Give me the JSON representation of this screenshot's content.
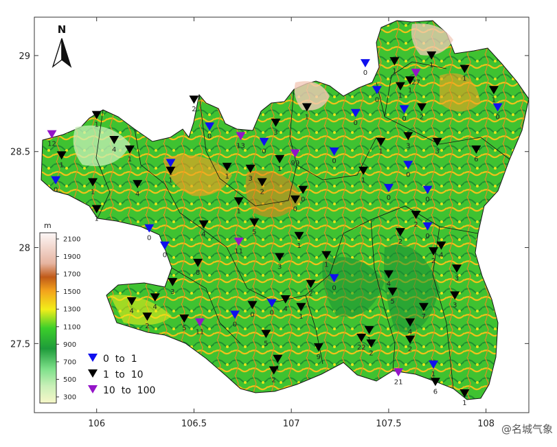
{
  "map": {
    "north_label": "N",
    "colorbar_unit": "m",
    "colorbar_ticks": [
      "2100",
      "1900",
      "1700",
      "1500",
      "1300",
      "1100",
      "900",
      "700",
      "500",
      "300"
    ],
    "lon_ticks": [
      "106",
      "106.5",
      "107",
      "107.5",
      "108"
    ],
    "lat_ticks": [
      "29",
      "28.5",
      "28",
      "27.5"
    ],
    "legend": [
      {
        "label": "0  to  1",
        "color": "#1010ee"
      },
      {
        "label": "1  to  10",
        "color": "#000000"
      },
      {
        "label": "10  to  100",
        "color": "#9414c8"
      }
    ],
    "watermark": "@名城气象",
    "extent": {
      "lon_min": 105.68,
      "lon_max": 108.22,
      "lat_min": 27.14,
      "lat_max": 29.2
    },
    "stations": [
      {
        "lon": 105.77,
        "lat": 28.59,
        "value": "12",
        "cls": "high"
      },
      {
        "lon": 105.82,
        "lat": 28.48,
        "value": "1",
        "cls": "mid"
      },
      {
        "lon": 105.79,
        "lat": 28.35,
        "value": "0",
        "cls": "low"
      },
      {
        "lon": 106.0,
        "lat": 28.69,
        "value": "1",
        "cls": "mid"
      },
      {
        "lon": 106.09,
        "lat": 28.56,
        "value": "4",
        "cls": "mid"
      },
      {
        "lon": 106.17,
        "lat": 28.51,
        "value": "1",
        "cls": "mid"
      },
      {
        "lon": 105.98,
        "lat": 28.34,
        "value": "1",
        "cls": "mid"
      },
      {
        "lon": 106.0,
        "lat": 28.2,
        "value": "1",
        "cls": "mid"
      },
      {
        "lon": 106.21,
        "lat": 28.33,
        "value": "4",
        "cls": "mid"
      },
      {
        "lon": 106.38,
        "lat": 28.44,
        "value": "1",
        "cls": "low"
      },
      {
        "lon": 106.38,
        "lat": 28.4,
        "value": "1",
        "cls": "mid"
      },
      {
        "lon": 106.5,
        "lat": 28.77,
        "value": "2",
        "cls": "mid"
      },
      {
        "lon": 106.58,
        "lat": 28.63,
        "value": "0",
        "cls": "low"
      },
      {
        "lon": 106.74,
        "lat": 28.58,
        "value": "13",
        "cls": "high"
      },
      {
        "lon": 106.86,
        "lat": 28.55,
        "value": "0",
        "cls": "low"
      },
      {
        "lon": 106.92,
        "lat": 28.65,
        "value": "3",
        "cls": "mid"
      },
      {
        "lon": 106.67,
        "lat": 28.42,
        "value": "1",
        "cls": "mid"
      },
      {
        "lon": 106.79,
        "lat": 28.41,
        "value": "3",
        "cls": "mid"
      },
      {
        "lon": 106.85,
        "lat": 28.34,
        "value": "2",
        "cls": "mid"
      },
      {
        "lon": 106.94,
        "lat": 28.46,
        "value": "1",
        "cls": "mid"
      },
      {
        "lon": 107.02,
        "lat": 28.49,
        "value": "99",
        "cls": "high"
      },
      {
        "lon": 107.08,
        "lat": 28.73,
        "value": "1",
        "cls": "mid"
      },
      {
        "lon": 107.22,
        "lat": 28.5,
        "value": "0",
        "cls": "low"
      },
      {
        "lon": 107.33,
        "lat": 28.7,
        "value": "0",
        "cls": "low"
      },
      {
        "lon": 107.37,
        "lat": 28.4,
        "value": "1",
        "cls": "mid"
      },
      {
        "lon": 106.27,
        "lat": 28.1,
        "value": "0",
        "cls": "low"
      },
      {
        "lon": 106.35,
        "lat": 28.01,
        "value": "0",
        "cls": "low"
      },
      {
        "lon": 106.55,
        "lat": 28.12,
        "value": "4",
        "cls": "mid"
      },
      {
        "lon": 106.73,
        "lat": 28.24,
        "value": "1",
        "cls": "mid"
      },
      {
        "lon": 106.81,
        "lat": 28.13,
        "value": "5",
        "cls": "mid"
      },
      {
        "lon": 106.73,
        "lat": 28.03,
        "value": "11",
        "cls": "high"
      },
      {
        "lon": 106.94,
        "lat": 27.95,
        "value": "3",
        "cls": "mid"
      },
      {
        "lon": 107.02,
        "lat": 28.25,
        "value": "0",
        "cls": "mid"
      },
      {
        "lon": 107.06,
        "lat": 28.3,
        "value": "0",
        "cls": "mid"
      },
      {
        "lon": 107.04,
        "lat": 28.06,
        "value": "1",
        "cls": "mid"
      },
      {
        "lon": 107.18,
        "lat": 27.96,
        "value": "1",
        "cls": "mid"
      },
      {
        "lon": 107.1,
        "lat": 27.81,
        "value": "2",
        "cls": "mid"
      },
      {
        "lon": 107.22,
        "lat": 27.84,
        "value": "0",
        "cls": "low"
      },
      {
        "lon": 106.52,
        "lat": 27.92,
        "value": "8",
        "cls": "mid"
      },
      {
        "lon": 106.39,
        "lat": 27.82,
        "value": "3",
        "cls": "mid"
      },
      {
        "lon": 106.18,
        "lat": 27.72,
        "value": "4",
        "cls": "mid"
      },
      {
        "lon": 106.3,
        "lat": 27.74,
        "value": "4",
        "cls": "mid"
      },
      {
        "lon": 106.26,
        "lat": 27.64,
        "value": "2",
        "cls": "mid"
      },
      {
        "lon": 106.45,
        "lat": 27.63,
        "value": "5",
        "cls": "mid"
      },
      {
        "lon": 106.53,
        "lat": 27.61,
        "value": "11",
        "cls": "high"
      },
      {
        "lon": 106.71,
        "lat": 27.65,
        "value": "0",
        "cls": "low"
      },
      {
        "lon": 106.8,
        "lat": 27.7,
        "value": "0",
        "cls": "mid"
      },
      {
        "lon": 106.9,
        "lat": 27.71,
        "value": "0",
        "cls": "low"
      },
      {
        "lon": 106.97,
        "lat": 27.73,
        "value": "4",
        "cls": "mid"
      },
      {
        "lon": 107.05,
        "lat": 27.69,
        "value": "1",
        "cls": "mid"
      },
      {
        "lon": 106.87,
        "lat": 27.55,
        "value": "5",
        "cls": "mid"
      },
      {
        "lon": 106.93,
        "lat": 27.42,
        "value": "1",
        "cls": "mid"
      },
      {
        "lon": 106.91,
        "lat": 27.36,
        "value": "2",
        "cls": "mid"
      },
      {
        "lon": 107.14,
        "lat": 27.48,
        "value": "9",
        "cls": "mid"
      },
      {
        "lon": 107.53,
        "lat": 28.97,
        "value": "1",
        "cls": "mid"
      },
      {
        "lon": 107.38,
        "lat": 28.96,
        "value": "0",
        "cls": "low"
      },
      {
        "lon": 107.56,
        "lat": 28.84,
        "value": "1",
        "cls": "mid"
      },
      {
        "lon": 107.61,
        "lat": 28.87,
        "value": "1",
        "cls": "mid"
      },
      {
        "lon": 107.64,
        "lat": 28.91,
        "value": "27",
        "cls": "high"
      },
      {
        "lon": 107.72,
        "lat": 29.0,
        "value": "1",
        "cls": "mid"
      },
      {
        "lon": 107.58,
        "lat": 28.72,
        "value": "0",
        "cls": "low"
      },
      {
        "lon": 107.67,
        "lat": 28.73,
        "value": "2",
        "cls": "mid"
      },
      {
        "lon": 107.44,
        "lat": 28.82,
        "value": "0",
        "cls": "low"
      },
      {
        "lon": 107.89,
        "lat": 28.93,
        "value": "1",
        "cls": "mid"
      },
      {
        "lon": 108.04,
        "lat": 28.82,
        "value": "1",
        "cls": "mid"
      },
      {
        "lon": 108.06,
        "lat": 28.73,
        "value": "0",
        "cls": "low"
      },
      {
        "lon": 107.95,
        "lat": 28.51,
        "value": "6",
        "cls": "mid"
      },
      {
        "lon": 107.75,
        "lat": 28.55,
        "value": "3",
        "cls": "mid"
      },
      {
        "lon": 107.6,
        "lat": 28.58,
        "value": "3",
        "cls": "mid"
      },
      {
        "lon": 107.46,
        "lat": 28.55,
        "value": "1",
        "cls": "mid"
      },
      {
        "lon": 107.6,
        "lat": 28.43,
        "value": "0",
        "cls": "low"
      },
      {
        "lon": 107.5,
        "lat": 28.31,
        "value": "0",
        "cls": "low"
      },
      {
        "lon": 107.7,
        "lat": 28.3,
        "value": "0",
        "cls": "low"
      },
      {
        "lon": 107.64,
        "lat": 28.17,
        "value": "2",
        "cls": "mid"
      },
      {
        "lon": 107.7,
        "lat": 28.11,
        "value": "0",
        "cls": "low"
      },
      {
        "lon": 107.56,
        "lat": 28.08,
        "value": "2",
        "cls": "mid"
      },
      {
        "lon": 107.77,
        "lat": 28.01,
        "value": "4",
        "cls": "mid"
      },
      {
        "lon": 107.73,
        "lat": 27.98,
        "value": "2",
        "cls": "mid"
      },
      {
        "lon": 107.85,
        "lat": 27.89,
        "value": "3",
        "cls": "mid"
      },
      {
        "lon": 107.84,
        "lat": 27.75,
        "value": "3",
        "cls": "mid"
      },
      {
        "lon": 107.5,
        "lat": 27.86,
        "value": "4",
        "cls": "mid"
      },
      {
        "lon": 107.52,
        "lat": 27.77,
        "value": "5",
        "cls": "mid"
      },
      {
        "lon": 107.68,
        "lat": 27.69,
        "value": "7",
        "cls": "mid"
      },
      {
        "lon": 107.61,
        "lat": 27.61,
        "value": "4",
        "cls": "mid"
      },
      {
        "lon": 107.61,
        "lat": 27.52,
        "value": "2",
        "cls": "mid"
      },
      {
        "lon": 107.4,
        "lat": 27.57,
        "value": "1",
        "cls": "mid"
      },
      {
        "lon": 107.36,
        "lat": 27.53,
        "value": "22",
        "cls": "mid"
      },
      {
        "lon": 107.41,
        "lat": 27.5,
        "value": "2",
        "cls": "mid"
      },
      {
        "lon": 107.55,
        "lat": 27.35,
        "value": "21",
        "cls": "high"
      },
      {
        "lon": 107.73,
        "lat": 27.39,
        "value": "1",
        "cls": "low"
      },
      {
        "lon": 107.74,
        "lat": 27.3,
        "value": "6",
        "cls": "mid"
      },
      {
        "lon": 107.89,
        "lat": 27.24,
        "value": "1",
        "cls": "mid"
      }
    ]
  }
}
